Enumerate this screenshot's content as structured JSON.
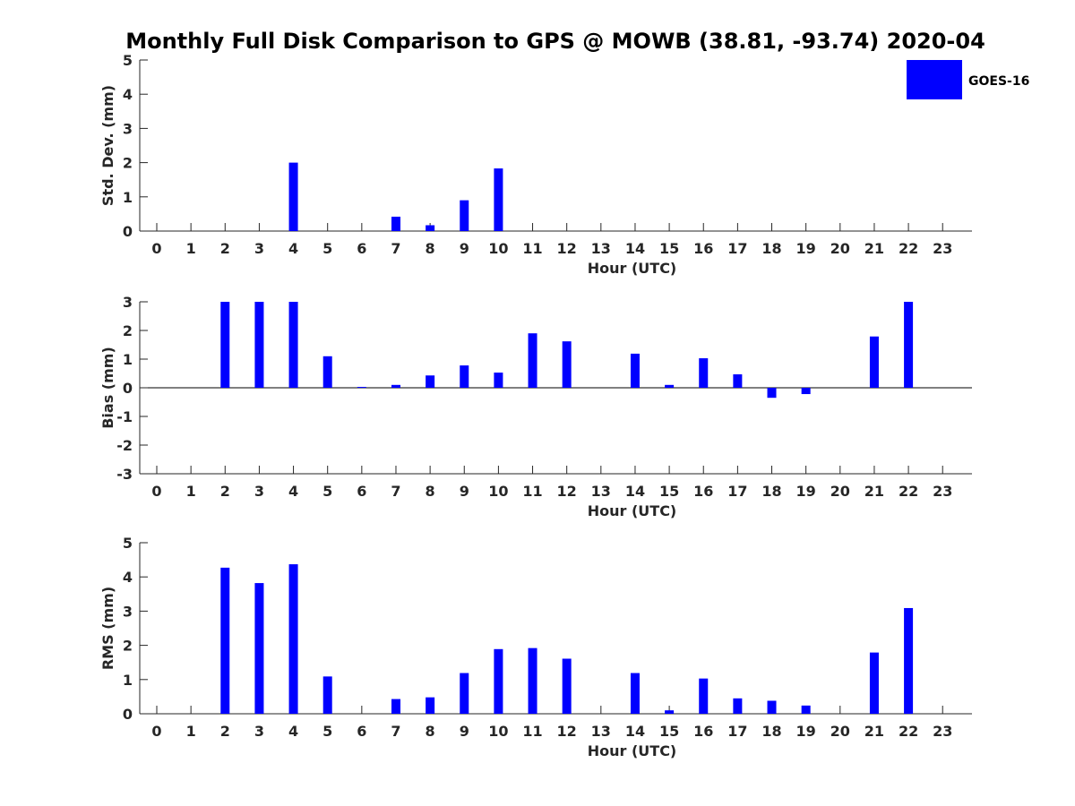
{
  "title": "Monthly Full Disk Comparison to GPS @ MOWB (38.81, -93.74) 2020-04",
  "legend": {
    "label": "GOES-16",
    "color": "#0000ff",
    "placement": "top-right"
  },
  "chart_data": [
    {
      "type": "bar",
      "categories": [
        "0",
        "1",
        "2",
        "3",
        "4",
        "5",
        "6",
        "7",
        "8",
        "9",
        "10",
        "11",
        "12",
        "13",
        "14",
        "15",
        "16",
        "17",
        "18",
        "19",
        "20",
        "21",
        "22",
        "23"
      ],
      "series": [
        {
          "name": "GOES-16",
          "values": [
            null,
            null,
            null,
            null,
            2.0,
            null,
            null,
            0.42,
            0.17,
            0.9,
            1.83,
            null,
            null,
            null,
            null,
            null,
            null,
            null,
            null,
            null,
            null,
            null,
            null,
            null
          ]
        }
      ],
      "xlabel": "Hour (UTC)",
      "ylabel": "Std. Dev. (mm)",
      "ylim": [
        0,
        5
      ],
      "yticks": [
        0,
        1,
        2,
        3,
        4,
        5
      ],
      "grid": false,
      "color": "#0000ff"
    },
    {
      "type": "bar",
      "categories": [
        "0",
        "1",
        "2",
        "3",
        "4",
        "5",
        "6",
        "7",
        "8",
        "9",
        "10",
        "11",
        "12",
        "13",
        "14",
        "15",
        "16",
        "17",
        "18",
        "19",
        "20",
        "21",
        "22",
        "23"
      ],
      "series": [
        {
          "name": "GOES-16",
          "values": [
            null,
            null,
            3.0,
            3.0,
            3.0,
            1.1,
            0.03,
            0.1,
            0.43,
            0.78,
            0.53,
            1.9,
            1.62,
            null,
            1.19,
            0.1,
            1.03,
            0.47,
            -0.35,
            -0.22,
            null,
            1.79,
            3.0,
            null
          ]
        }
      ],
      "xlabel": "Hour (UTC)",
      "ylabel": "Bias (mm)",
      "ylim": [
        -3,
        3
      ],
      "yticks": [
        -3,
        -2,
        -1,
        0,
        1,
        2,
        3
      ],
      "grid": false,
      "zero_line": true,
      "color": "#0000ff"
    },
    {
      "type": "bar",
      "categories": [
        "0",
        "1",
        "2",
        "3",
        "4",
        "5",
        "6",
        "7",
        "8",
        "9",
        "10",
        "11",
        "12",
        "13",
        "14",
        "15",
        "16",
        "17",
        "18",
        "19",
        "20",
        "21",
        "22",
        "23"
      ],
      "series": [
        {
          "name": "GOES-16",
          "values": [
            null,
            null,
            4.27,
            3.82,
            4.37,
            1.09,
            null,
            0.43,
            0.48,
            1.19,
            1.89,
            1.92,
            1.61,
            null,
            1.19,
            0.1,
            1.03,
            0.45,
            0.38,
            0.24,
            null,
            1.79,
            3.09,
            null
          ]
        }
      ],
      "xlabel": "Hour (UTC)",
      "ylabel": "RMS (mm)",
      "ylim": [
        0,
        5
      ],
      "yticks": [
        0,
        1,
        2,
        3,
        4,
        5
      ],
      "grid": false,
      "color": "#0000ff"
    }
  ]
}
